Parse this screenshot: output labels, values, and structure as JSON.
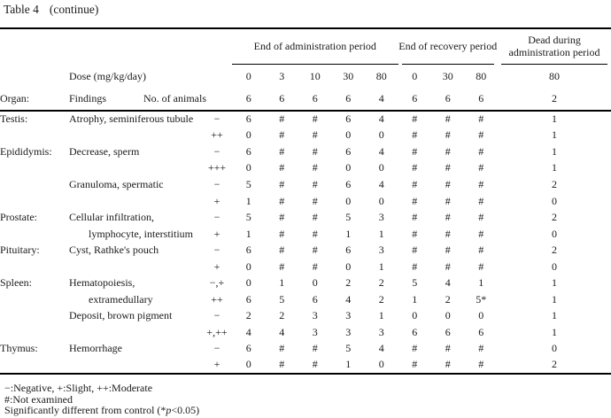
{
  "title": {
    "label": "Table 4",
    "suffix": "(continue)"
  },
  "table": {
    "organ_label": "Organ:",
    "findings_label": "Findings",
    "dose_label": "Dose (mg/kg/day)",
    "animals_label": "No. of animals",
    "groups": [
      {
        "label": "End of administration period",
        "doses": [
          "0",
          "3",
          "10",
          "30",
          "80"
        ],
        "animals": [
          "6",
          "6",
          "6",
          "6",
          "4"
        ]
      },
      {
        "label": "End of recovery period",
        "doses": [
          "0",
          "30",
          "80"
        ],
        "animals": [
          "6",
          "6",
          "6"
        ]
      },
      {
        "label": "Dead during administration period",
        "doses": [
          "80"
        ],
        "animals": [
          "2"
        ]
      }
    ],
    "rows": [
      {
        "organ": "Testis:",
        "finding": "Atrophy, seminiferous tubule",
        "indent": false,
        "grade": "−",
        "values": [
          "6",
          "#",
          "#",
          "6",
          "4",
          "#",
          "#",
          "#",
          "1"
        ]
      },
      {
        "organ": "",
        "finding": "",
        "indent": false,
        "grade": "++",
        "values": [
          "0",
          "#",
          "#",
          "0",
          "0",
          "#",
          "#",
          "#",
          "1"
        ]
      },
      {
        "organ": "Epididymis:",
        "finding": "Decrease, sperm",
        "indent": false,
        "grade": "−",
        "values": [
          "6",
          "#",
          "#",
          "6",
          "4",
          "#",
          "#",
          "#",
          "1"
        ]
      },
      {
        "organ": "",
        "finding": "",
        "indent": false,
        "grade": "+++",
        "values": [
          "0",
          "#",
          "#",
          "0",
          "0",
          "#",
          "#",
          "#",
          "1"
        ]
      },
      {
        "organ": "",
        "finding": "Granuloma, spermatic",
        "indent": false,
        "grade": "−",
        "values": [
          "5",
          "#",
          "#",
          "6",
          "4",
          "#",
          "#",
          "#",
          "2"
        ]
      },
      {
        "organ": "",
        "finding": "",
        "indent": false,
        "grade": "+",
        "values": [
          "1",
          "#",
          "#",
          "0",
          "0",
          "#",
          "#",
          "#",
          "0"
        ]
      },
      {
        "organ": "Prostate:",
        "finding": "Cellular infiltration,",
        "indent": false,
        "grade": "−",
        "values": [
          "5",
          "#",
          "#",
          "5",
          "3",
          "#",
          "#",
          "#",
          "2"
        ]
      },
      {
        "organ": "",
        "finding": "lymphocyte, interstitium",
        "indent": true,
        "grade": "+",
        "values": [
          "1",
          "#",
          "#",
          "1",
          "1",
          "#",
          "#",
          "#",
          "0"
        ]
      },
      {
        "organ": "Pituitary:",
        "finding": "Cyst, Rathke's pouch",
        "indent": false,
        "grade": "−",
        "values": [
          "6",
          "#",
          "#",
          "6",
          "3",
          "#",
          "#",
          "#",
          "2"
        ]
      },
      {
        "organ": "",
        "finding": "",
        "indent": false,
        "grade": "+",
        "values": [
          "0",
          "#",
          "#",
          "0",
          "1",
          "#",
          "#",
          "#",
          "0"
        ]
      },
      {
        "organ": "Spleen:",
        "finding": "Hematopoiesis,",
        "indent": false,
        "grade": "−,+",
        "values": [
          "0",
          "1",
          "0",
          "2",
          "2",
          "5",
          "4",
          "1",
          "1"
        ]
      },
      {
        "organ": "",
        "finding": "extramedullary",
        "indent": true,
        "grade": "++",
        "values": [
          "6",
          "5",
          "6",
          "4",
          "2",
          "1",
          "2",
          "5*",
          "1"
        ]
      },
      {
        "organ": "",
        "finding": "Deposit, brown pigment",
        "indent": false,
        "grade": "−",
        "values": [
          "2",
          "2",
          "3",
          "3",
          "1",
          "0",
          "0",
          "0",
          "1"
        ]
      },
      {
        "organ": "",
        "finding": "",
        "indent": false,
        "grade": "+,++",
        "values": [
          "4",
          "4",
          "3",
          "3",
          "3",
          "6",
          "6",
          "6",
          "1"
        ]
      },
      {
        "organ": "Thymus:",
        "finding": "Hemorrhage",
        "indent": false,
        "grade": "−",
        "values": [
          "6",
          "#",
          "#",
          "5",
          "4",
          "#",
          "#",
          "#",
          "0"
        ]
      },
      {
        "organ": "",
        "finding": "",
        "indent": false,
        "grade": "+",
        "values": [
          "0",
          "#",
          "#",
          "1",
          "0",
          "#",
          "#",
          "#",
          "2"
        ]
      }
    ]
  },
  "footnotes": {
    "legend": "−:Negative, +:Slight, ++:Moderate",
    "not_examined": "#:Not examined",
    "significance_pre": "Significantly different from control (*",
    "significance_italic": "p",
    "significance_post": "<0.05)"
  }
}
